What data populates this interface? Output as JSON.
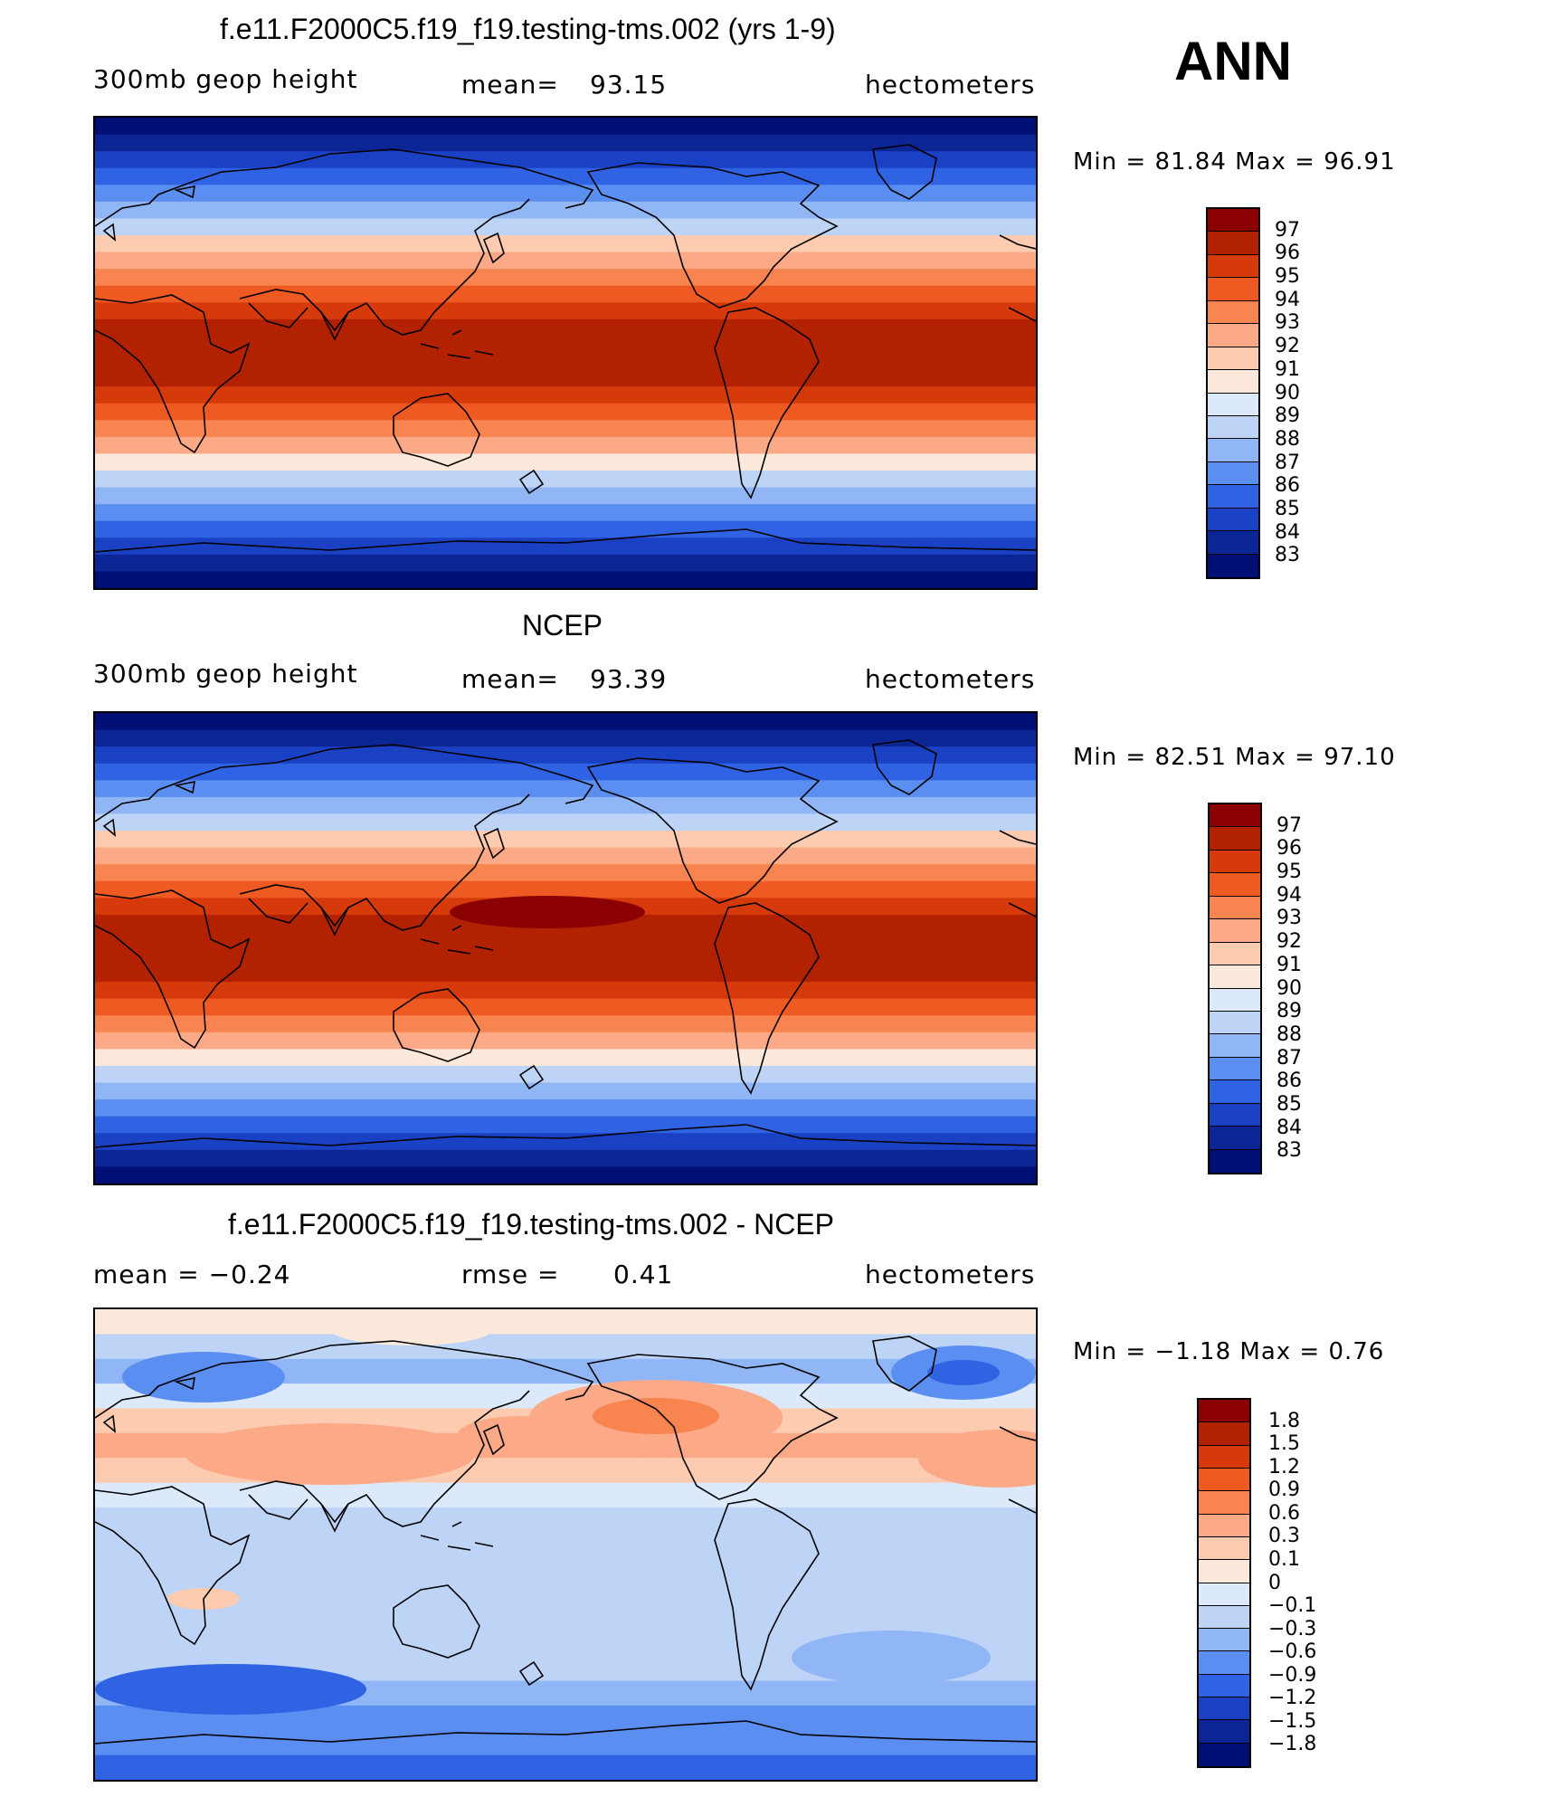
{
  "season": "ANN",
  "units": "hectometers",
  "panels": [
    {
      "title": "f.e11.F2000C5.f19_f19.testing-tms.002 (yrs 1-9)",
      "left_label": "300mb geop height",
      "stat_label": "mean=",
      "stat_value": "93.15",
      "min_max": "Min =    81.84  Max =    96.91",
      "colorbar_labels": [
        "97",
        "96",
        "95",
        "94",
        "93",
        "92",
        "91",
        "90",
        "89",
        "88",
        "87",
        "86",
        "85",
        "84",
        "83"
      ],
      "colorbar_colors": [
        "#8b0000",
        "#b22200",
        "#d63a0b",
        "#ef5a23",
        "#f8844f",
        "#fba987",
        "#fccbb0",
        "#fde9dc",
        "#dbe9fa",
        "#bdd4f7",
        "#90b6f5",
        "#5a8ef1",
        "#2f63e4",
        "#1a40c4",
        "#0b2594",
        "#000f74"
      ],
      "bands": [
        "#000f74",
        "#0b2594",
        "#1a40c4",
        "#2f63e4",
        "#5a8ef1",
        "#90b6f5",
        "#bdd4f7",
        "#fde9dc",
        "#fba987",
        "#f8844f",
        "#ef5a23",
        "#d63a0b",
        "#b22200",
        "#b22200",
        "#b22200",
        "#b22200",
        "#d63a0b",
        "#ef5a23",
        "#f8844f",
        "#fba987",
        "#fccbb0",
        "#bdd4f7",
        "#90b6f5",
        "#5a8ef1",
        "#2f63e4",
        "#1a40c4",
        "#0b2594",
        "#000f74"
      ]
    },
    {
      "title": "NCEP",
      "left_label": "300mb geop height",
      "stat_label": "mean=",
      "stat_value": "93.39",
      "min_max": "Min =    82.51  Max =    97.10",
      "colorbar_labels": [
        "97",
        "96",
        "95",
        "94",
        "93",
        "92",
        "91",
        "90",
        "89",
        "88",
        "87",
        "86",
        "85",
        "84",
        "83"
      ],
      "colorbar_colors": [
        "#8b0000",
        "#b22200",
        "#d63a0b",
        "#ef5a23",
        "#f8844f",
        "#fba987",
        "#fccbb0",
        "#fde9dc",
        "#dbe9fa",
        "#bdd4f7",
        "#90b6f5",
        "#5a8ef1",
        "#2f63e4",
        "#1a40c4",
        "#0b2594",
        "#000f74"
      ],
      "bands": [
        "#000f74",
        "#0b2594",
        "#1a40c4",
        "#2f63e4",
        "#5a8ef1",
        "#90b6f5",
        "#bdd4f7",
        "#fde9dc",
        "#fba987",
        "#f8844f",
        "#ef5a23",
        "#d63a0b",
        "#b22200",
        "#b22200",
        "#b22200",
        "#b22200",
        "#d63a0b",
        "#ef5a23",
        "#f8844f",
        "#fba987",
        "#fccbb0",
        "#bdd4f7",
        "#90b6f5",
        "#5a8ef1",
        "#2f63e4",
        "#1a40c4",
        "#0b2594",
        "#000f74"
      ]
    },
    {
      "title": "f.e11.F2000C5.f19_f19.testing-tms.002 - NCEP",
      "left_label": "mean =   −0.24",
      "stat_label": "rmse =",
      "stat_value": "0.41",
      "min_max": "Min =   −1.18  Max =     0.76",
      "colorbar_labels": [
        "1.8",
        "1.5",
        "1.2",
        "0.9",
        "0.6",
        "0.3",
        "0.1",
        "0",
        "−0.1",
        "−0.3",
        "−0.6",
        "−0.9",
        "−1.2",
        "−1.5",
        "−1.8"
      ],
      "colorbar_colors": [
        "#8b0000",
        "#b22200",
        "#d63a0b",
        "#ef5a23",
        "#f8844f",
        "#fba987",
        "#fccbb0",
        "#fde9dc",
        "#dbe9fa",
        "#bdd4f7",
        "#90b6f5",
        "#5a8ef1",
        "#2f63e4",
        "#1a40c4",
        "#0b2594",
        "#000f74"
      ],
      "bands": [
        "#2f63e4",
        "#5a8ef1",
        "#5a8ef1",
        "#90b6f5",
        "#bdd4f7",
        "#bdd4f7",
        "#bdd4f7",
        "#bdd4f7",
        "#bdd4f7",
        "#bdd4f7",
        "#bdd4f7",
        "#dbe9fa",
        "#fccbb0",
        "#fba987",
        "#fccbb0",
        "#dbe9fa",
        "#90b6f5",
        "#bdd4f7",
        "#fde9dc"
      ]
    }
  ]
}
